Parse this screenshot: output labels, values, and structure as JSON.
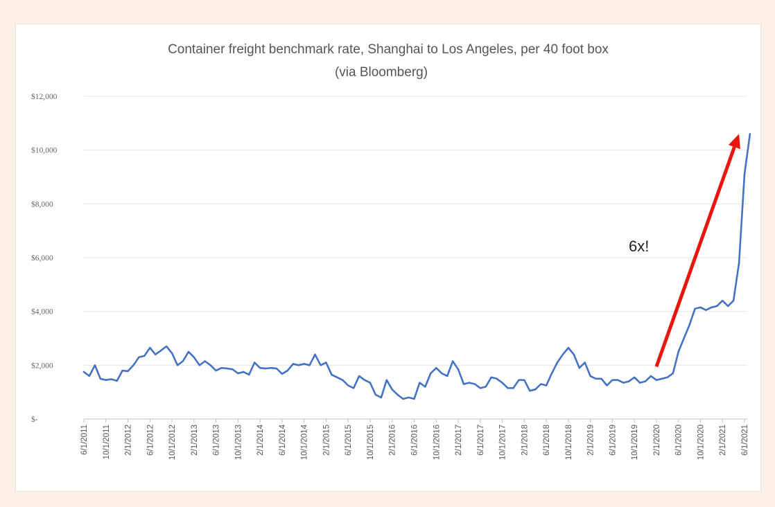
{
  "colors": {
    "page_background": "#fdf0e6",
    "plot_background": "#ffffff",
    "series_line": "#4472c4",
    "arrow": "#e8160c",
    "gridline": "#e6e6e6"
  },
  "chart_data": {
    "type": "line",
    "title": "Container freight benchmark rate, Shanghai to Los Angeles, per 40 foot box",
    "subtitle": "(via Bloomberg)",
    "xlabel": "",
    "ylabel": "",
    "ylim": [
      0,
      12000
    ],
    "y_ticks": [
      0,
      2000,
      4000,
      6000,
      8000,
      10000,
      12000
    ],
    "y_tick_labels": [
      "$-",
      "$2,000",
      "$4,000",
      "$6,000",
      "$8,000",
      "$10,000",
      "$12,000"
    ],
    "x_tick_labels": [
      "6/1/2011",
      "10/1/2011",
      "2/1/2012",
      "6/1/2012",
      "10/1/2012",
      "2/1/2013",
      "6/1/2013",
      "10/1/2013",
      "2/1/2014",
      "6/1/2014",
      "10/1/2014",
      "2/1/2015",
      "6/1/2015",
      "10/1/2015",
      "2/1/2016",
      "6/1/2016",
      "10/1/2016",
      "2/1/2017",
      "6/1/2017",
      "10/1/2017",
      "2/1/2018",
      "6/1/2018",
      "10/1/2018",
      "2/1/2019",
      "6/1/2019",
      "10/1/2019",
      "2/1/2020",
      "6/1/2020",
      "10/1/2020",
      "2/1/2021",
      "6/1/2021"
    ],
    "grid": true,
    "legend": "none",
    "x_month_step": 1,
    "series": [
      {
        "start": "6/1/2011",
        "values": [
          1750,
          1600,
          2000,
          1500,
          1450,
          1480,
          1420,
          1800,
          1780,
          2000,
          2300,
          2350,
          2650,
          2400,
          2550,
          2700,
          2450,
          2000,
          2150,
          2500,
          2300,
          2000,
          2150,
          2000,
          1800,
          1900,
          1880,
          1850,
          1700,
          1750,
          1650,
          2100,
          1900,
          1880,
          1900,
          1880,
          1680,
          1800,
          2050,
          2000,
          2050,
          2000,
          2400,
          2000,
          2100,
          1650,
          1550,
          1450,
          1250,
          1150,
          1600,
          1450,
          1350,
          900,
          800,
          1450,
          1100,
          900,
          750,
          800,
          750,
          1350,
          1200,
          1700,
          1900,
          1700,
          1600,
          2150,
          1850,
          1300,
          1350,
          1300,
          1150,
          1200,
          1550,
          1500,
          1350,
          1150,
          1150,
          1450,
          1450,
          1050,
          1100,
          1300,
          1250,
          1700,
          2100,
          2400,
          2650,
          2400,
          1900,
          2100,
          1600,
          1500,
          1500,
          1250,
          1450,
          1450,
          1350,
          1400,
          1550,
          1350,
          1400,
          1600,
          1450,
          1500,
          1550,
          1700,
          2500,
          3000,
          3500,
          4100,
          4150,
          4050,
          4150,
          4200,
          4400,
          4200,
          4400,
          5800,
          9100,
          10600
        ]
      }
    ],
    "annotations": [
      {
        "text": "6x!",
        "type": "label"
      },
      {
        "text": "",
        "type": "arrow",
        "from": {
          "x": "2/1/2020",
          "y": 1950
        },
        "to": {
          "x": "5/1/2021",
          "y": 10600
        }
      }
    ]
  }
}
